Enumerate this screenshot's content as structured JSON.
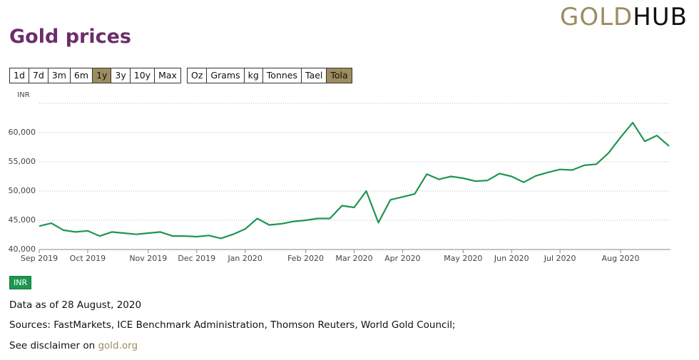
{
  "logo": {
    "part1": "GOLD",
    "part2": "HUB"
  },
  "page_title": "Gold prices",
  "range_buttons": [
    {
      "label": "1d",
      "selected": false
    },
    {
      "label": "7d",
      "selected": false
    },
    {
      "label": "3m",
      "selected": false
    },
    {
      "label": "6m",
      "selected": false
    },
    {
      "label": "1y",
      "selected": true
    },
    {
      "label": "3y",
      "selected": false
    },
    {
      "label": "10y",
      "selected": false
    },
    {
      "label": "Max",
      "selected": false
    }
  ],
  "unit_buttons": [
    {
      "label": "Oz",
      "selected": false
    },
    {
      "label": "Grams",
      "selected": false
    },
    {
      "label": "kg",
      "selected": false
    },
    {
      "label": "Tonnes",
      "selected": false
    },
    {
      "label": "Tael",
      "selected": false
    },
    {
      "label": "Tola",
      "selected": true
    }
  ],
  "chart_data": {
    "type": "line",
    "ylabel": "INR",
    "categories": [
      "Sep 2019",
      null,
      null,
      null,
      "Oct 2019",
      null,
      null,
      null,
      null,
      "Nov 2019",
      null,
      null,
      null,
      "Dec 2019",
      null,
      null,
      null,
      "Jan 2020",
      null,
      null,
      null,
      null,
      "Feb 2020",
      null,
      null,
      null,
      "Mar 2020",
      null,
      null,
      null,
      "Apr 2020",
      null,
      null,
      null,
      null,
      "May 2020",
      null,
      null,
      null,
      "Jun 2020",
      null,
      null,
      null,
      "Jul 2020",
      null,
      null,
      null,
      null,
      "Aug 2020",
      null,
      null,
      null,
      null
    ],
    "series": [
      {
        "name": "INR",
        "color": "#1e9650",
        "values": [
          44000,
          44500,
          43300,
          43000,
          43200,
          42300,
          43000,
          42800,
          42600,
          42800,
          43000,
          42300,
          42300,
          42200,
          42400,
          41900,
          42600,
          43500,
          45300,
          44200,
          44400,
          44800,
          45000,
          45300,
          45300,
          47500,
          47200,
          50000,
          44600,
          48500,
          49000,
          49500,
          52900,
          52000,
          52500,
          52200,
          51700,
          51800,
          53000,
          52500,
          51500,
          52600,
          53200,
          53700,
          53600,
          54400,
          54600,
          56500,
          59200,
          61700,
          58500,
          59500,
          57700
        ]
      }
    ],
    "ylim": [
      40000,
      65000
    ],
    "yticks": [
      {
        "value": 40000,
        "label": "40,000"
      },
      {
        "value": 45000,
        "label": "45,000"
      },
      {
        "value": 50000,
        "label": "50,000"
      },
      {
        "value": 55000,
        "label": "55,000"
      },
      {
        "value": 60000,
        "label": "60,000"
      },
      65000
    ],
    "grid": true
  },
  "footer": {
    "as_of": "Data as of 28 August, 2020",
    "sources": "Sources: FastMarkets, ICE Benchmark Administration, Thomson Reuters, World Gold Council;",
    "disclaimer": "See disclaimer on",
    "link": "gold.org"
  }
}
